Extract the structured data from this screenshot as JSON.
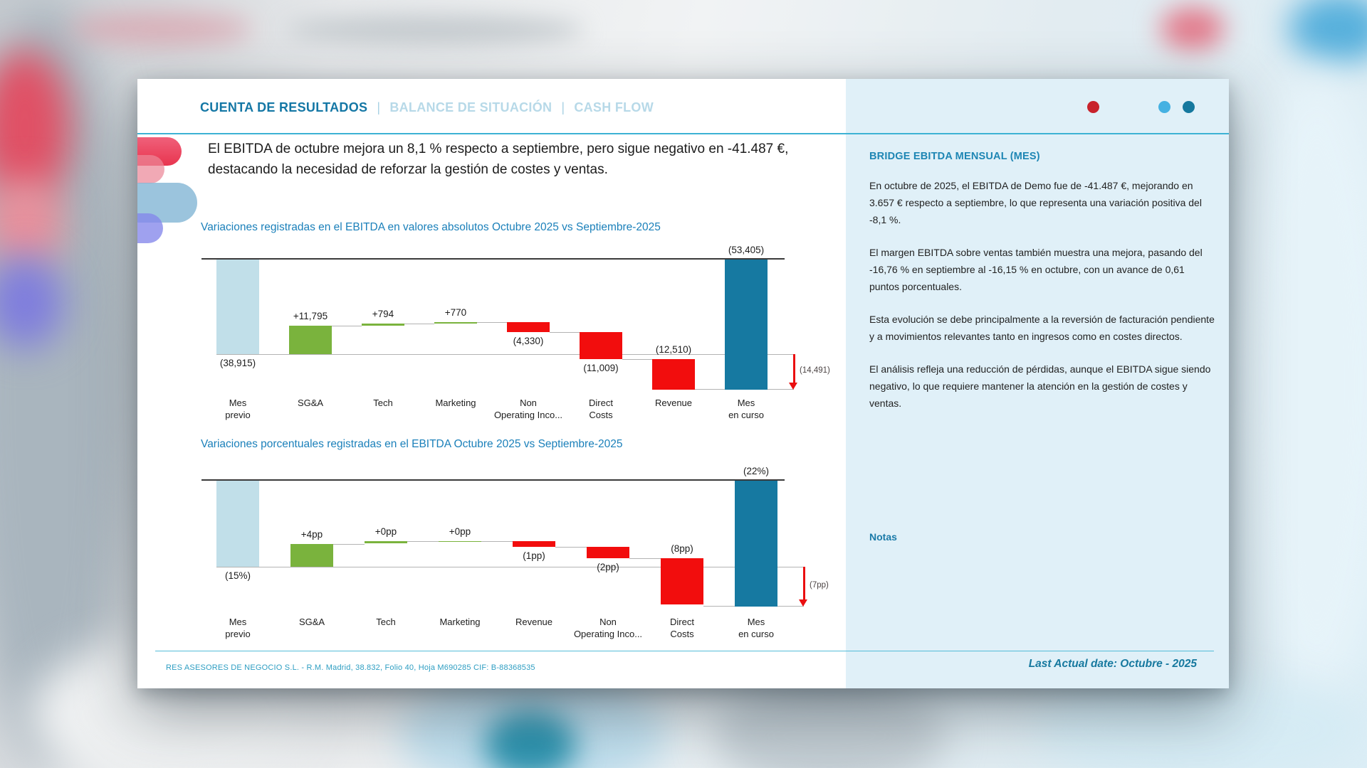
{
  "header": {
    "tabs": [
      {
        "label": "CUENTA DE RESULTADOS",
        "active": true
      },
      {
        "label": "BALANCE DE SITUACIÓN",
        "active": false
      },
      {
        "label": "CASH FLOW",
        "active": false
      }
    ],
    "separator": "|",
    "dots": [
      {
        "name": "red",
        "color": "#c8232c"
      },
      {
        "name": "light-blue",
        "color": "#45b1e2"
      },
      {
        "name": "teal",
        "color": "#15789e"
      }
    ],
    "accent_line_color": "#3db2d4"
  },
  "headline": {
    "lines": [
      "El EBITDA de octubre mejora un 8,1 % respecto a septiembre, pero sigue negativo en -41.487 €,",
      "destacando la necesidad de reforzar la gestión de costes y ventas."
    ]
  },
  "panel": {
    "title": "BRIDGE EBITDA MENSUAL (MES)",
    "paragraphs": [
      "En octubre de 2025, el EBITDA de Demo fue de -41.487 €, mejorando en 3.657 € respecto a septiembre, lo que representa una variación positiva del -8,1 %.",
      "El margen EBITDA sobre ventas también muestra una mejora, pasando del -16,76 % en septiembre al -16,15 % en octubre, con un avance de 0,61 puntos porcentuales.",
      "Esta evolución se debe principalmente a la reversión de facturación pendiente y a movimientos relevantes tanto en ingresos como en costes directos.",
      "El análisis refleja una reducción de pérdidas, aunque el EBITDA sigue siendo negativo, lo que requiere mantener la atención en la gestión de costes y ventas."
    ],
    "notes_label": "Notas",
    "background_color": "#e0f0f8"
  },
  "footer": {
    "company": "RES ASESORES DE NEGOCIO S.L. - R.M. Madrid, 38.832, Folio 40, Hoja M690285  CIF: B-88368535",
    "last_actual": "Last Actual date: Octubre - 2025"
  },
  "chart_data": [
    {
      "type": "bar",
      "subtype": "waterfall",
      "title": "Variaciones registradas en el EBITDA en valores absolutos Octubre 2025 vs Septiembre-2025",
      "unit": "EUR",
      "axis_note": "all values negative, zero axis drawn at top, no gridlines",
      "palette": {
        "lightblue": "#c1dfe9",
        "green": "#7ab33d",
        "red": "#f20d0d",
        "teal": "#1679a1"
      },
      "items": [
        {
          "label": [
            "Mes",
            "previo"
          ],
          "role": "start",
          "value": -38915,
          "display": "(38,915)",
          "label_pos": "below",
          "color": "lightblue"
        },
        {
          "label": [
            "SG&A"
          ],
          "role": "delta",
          "value": 11795,
          "display": "+11,795",
          "label_pos": "above",
          "color": "green"
        },
        {
          "label": [
            "Tech"
          ],
          "role": "delta",
          "value": 794,
          "display": "+794",
          "label_pos": "above",
          "color": "green"
        },
        {
          "label": [
            "Marketing"
          ],
          "role": "delta",
          "value": 770,
          "display": "+770",
          "label_pos": "above",
          "color": "green"
        },
        {
          "label": [
            "Non",
            "Operating Inco..."
          ],
          "role": "delta",
          "value": -4330,
          "display": "(4,330)",
          "label_pos": "below",
          "color": "red"
        },
        {
          "label": [
            "Direct",
            "Costs"
          ],
          "role": "delta",
          "value": -11009,
          "display": "(11,009)",
          "label_pos": "below",
          "color": "red"
        },
        {
          "label": [
            "Revenue"
          ],
          "role": "delta",
          "value": -12510,
          "display": "(12,510)",
          "label_pos": "above",
          "color": "red"
        },
        {
          "label": [
            "Mes",
            "en curso"
          ],
          "role": "total",
          "value": -53405,
          "display": "(53,405)",
          "label_pos": "above",
          "color": "teal"
        }
      ],
      "bridge_arrow": {
        "value": -14491,
        "display": "(14,491)",
        "color": "#ea0f10"
      }
    },
    {
      "type": "bar",
      "subtype": "waterfall",
      "title": "Variaciones porcentuales registradas en el EBITDA Octubre 2025 vs Septiembre-2025",
      "unit": "pp",
      "axis_note": "all values negative, zero axis drawn at top, no gridlines",
      "palette": {
        "lightblue": "#c1dfe9",
        "green": "#7ab33d",
        "red": "#f20d0d",
        "teal": "#1679a1"
      },
      "items": [
        {
          "label": [
            "Mes",
            "previo"
          ],
          "role": "start",
          "value": -15,
          "display": "(15%)",
          "label_pos": "below",
          "color": "lightblue"
        },
        {
          "label": [
            "SG&A"
          ],
          "role": "delta",
          "value": 4,
          "display": "+4pp",
          "label_pos": "above",
          "color": "green"
        },
        {
          "label": [
            "Tech"
          ],
          "role": "delta",
          "value": 0.4,
          "display": "+0pp",
          "label_pos": "above",
          "color": "green"
        },
        {
          "label": [
            "Marketing"
          ],
          "role": "delta",
          "value": 0,
          "display": "+0pp",
          "label_pos": "above",
          "color": "green"
        },
        {
          "label": [
            "Revenue"
          ],
          "role": "delta",
          "value": -1,
          "display": "(1pp)",
          "label_pos": "below",
          "color": "red"
        },
        {
          "label": [
            "Non",
            "Operating Inco..."
          ],
          "role": "delta",
          "value": -2,
          "display": "(2pp)",
          "label_pos": "below",
          "color": "red"
        },
        {
          "label": [
            "Direct",
            "Costs"
          ],
          "role": "delta",
          "value": -8,
          "display": "(8pp)",
          "label_pos": "above",
          "color": "red"
        },
        {
          "label": [
            "Mes",
            "en curso"
          ],
          "role": "total",
          "value": -22,
          "display": "(22%)",
          "label_pos": "above",
          "color": "teal"
        }
      ],
      "bridge_arrow": {
        "value": -7,
        "display": "(7pp)",
        "color": "#ea0f10"
      }
    }
  ]
}
